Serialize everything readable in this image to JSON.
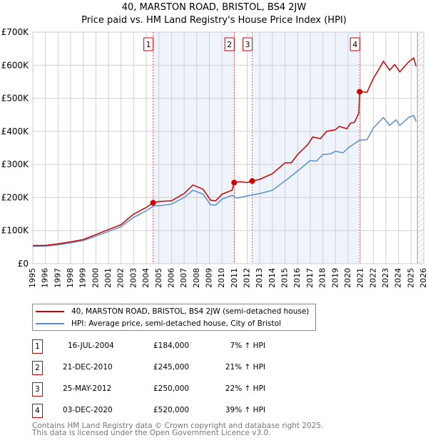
{
  "title": "40, MARSTON ROAD, BRISTOL, BS4 2JW",
  "subtitle": "Price paid vs. HM Land Registry's House Price Index (HPI)",
  "chart_data": {
    "type": "line",
    "ylim": [
      0,
      700000
    ],
    "xlim": [
      1995,
      2026
    ],
    "y_ticks": [
      {
        "v": 0,
        "label": "£0"
      },
      {
        "v": 100000,
        "label": "£100K"
      },
      {
        "v": 200000,
        "label": "£200K"
      },
      {
        "v": 300000,
        "label": "£300K"
      },
      {
        "v": 400000,
        "label": "£400K"
      },
      {
        "v": 500000,
        "label": "£500K"
      },
      {
        "v": 600000,
        "label": "£600K"
      },
      {
        "v": 700000,
        "label": "£700K"
      }
    ],
    "x_ticks": [
      "1995",
      "1996",
      "1997",
      "1998",
      "1999",
      "2000",
      "2001",
      "2002",
      "2003",
      "2004",
      "2005",
      "2006",
      "2007",
      "2008",
      "2009",
      "2010",
      "2011",
      "2012",
      "2013",
      "2014",
      "2015",
      "2016",
      "2017",
      "2018",
      "2019",
      "2020",
      "2021",
      "2022",
      "2023",
      "2024",
      "2025",
      "2026"
    ],
    "grid": true,
    "shaded_ranges": [
      [
        2004.54,
        2010.97
      ],
      [
        2012.4,
        2020.92
      ]
    ],
    "forecast_hatch_from": 2025.5,
    "series": [
      {
        "name": "40, MARSTON ROAD, BRISTOL, BS4 2JW (semi-detached house)",
        "color": "#cc0000",
        "points": [
          [
            1995,
            55000
          ],
          [
            1996,
            55000
          ],
          [
            1997,
            60000
          ],
          [
            1998,
            66000
          ],
          [
            1999,
            73000
          ],
          [
            2000,
            88000
          ],
          [
            2001,
            103000
          ],
          [
            2002,
            118000
          ],
          [
            2003,
            150000
          ],
          [
            2004,
            170000
          ],
          [
            2004.54,
            184000
          ],
          [
            2005,
            188000
          ],
          [
            2006,
            190000
          ],
          [
            2007,
            212000
          ],
          [
            2007.7,
            238000
          ],
          [
            2008.5,
            225000
          ],
          [
            2009.1,
            192000
          ],
          [
            2009.5,
            190000
          ],
          [
            2010,
            210000
          ],
          [
            2010.8,
            222000
          ],
          [
            2010.97,
            245000
          ],
          [
            2011.5,
            248000
          ],
          [
            2012,
            245000
          ],
          [
            2012.4,
            250000
          ],
          [
            2013,
            255000
          ],
          [
            2014,
            272000
          ],
          [
            2015,
            305000
          ],
          [
            2015.5,
            305000
          ],
          [
            2016,
            330000
          ],
          [
            2016.8,
            360000
          ],
          [
            2017.2,
            383000
          ],
          [
            2017.8,
            378000
          ],
          [
            2018.3,
            400000
          ],
          [
            2019,
            405000
          ],
          [
            2019.3,
            415000
          ],
          [
            2019.9,
            408000
          ],
          [
            2020.2,
            425000
          ],
          [
            2020.5,
            427000
          ],
          [
            2020.85,
            455000
          ],
          [
            2020.92,
            520000
          ],
          [
            2021.5,
            518000
          ],
          [
            2022,
            560000
          ],
          [
            2022.4,
            585000
          ],
          [
            2022.8,
            612000
          ],
          [
            2023.3,
            585000
          ],
          [
            2023.7,
            602000
          ],
          [
            2024.1,
            580000
          ],
          [
            2024.8,
            610000
          ],
          [
            2025.2,
            622000
          ],
          [
            2025.4,
            597000
          ]
        ]
      },
      {
        "name": "HPI: Average price, semi-detached house, City of Bristol",
        "color": "#5b8fd4",
        "points": [
          [
            1995,
            52000
          ],
          [
            1996,
            53000
          ],
          [
            1997,
            57000
          ],
          [
            1998,
            63000
          ],
          [
            1999,
            70000
          ],
          [
            2000,
            83000
          ],
          [
            2001,
            97000
          ],
          [
            2002,
            112000
          ],
          [
            2003,
            140000
          ],
          [
            2004,
            160000
          ],
          [
            2004.6,
            175000
          ],
          [
            2005,
            175000
          ],
          [
            2006,
            180000
          ],
          [
            2007,
            200000
          ],
          [
            2007.7,
            222000
          ],
          [
            2008.5,
            210000
          ],
          [
            2009.1,
            178000
          ],
          [
            2009.5,
            177000
          ],
          [
            2010,
            195000
          ],
          [
            2010.8,
            207000
          ],
          [
            2011.2,
            198000
          ],
          [
            2012,
            205000
          ],
          [
            2013,
            212000
          ],
          [
            2014,
            222000
          ],
          [
            2015,
            250000
          ],
          [
            2016,
            280000
          ],
          [
            2017,
            312000
          ],
          [
            2017.5,
            310000
          ],
          [
            2018,
            330000
          ],
          [
            2018.6,
            332000
          ],
          [
            2019,
            340000
          ],
          [
            2019.6,
            335000
          ],
          [
            2020,
            350000
          ],
          [
            2020.9,
            373000
          ],
          [
            2021.5,
            375000
          ],
          [
            2022,
            410000
          ],
          [
            2022.8,
            442000
          ],
          [
            2023.3,
            418000
          ],
          [
            2023.8,
            435000
          ],
          [
            2024.1,
            418000
          ],
          [
            2024.8,
            442000
          ],
          [
            2025.2,
            448000
          ],
          [
            2025.4,
            430000
          ]
        ]
      }
    ],
    "sales": [
      {
        "n": "1",
        "x": 2004.54,
        "y": 184000,
        "date": "16-JUL-2004",
        "price": "£184,000",
        "hpi": "7% ↑ HPI"
      },
      {
        "n": "2",
        "x": 2010.97,
        "y": 245000,
        "date": "21-DEC-2010",
        "price": "£245,000",
        "hpi": "21% ↑ HPI"
      },
      {
        "n": "3",
        "x": 2012.4,
        "y": 250000,
        "date": "25-MAY-2012",
        "price": "£250,000",
        "hpi": "22% ↑ HPI"
      },
      {
        "n": "4",
        "x": 2020.92,
        "y": 520000,
        "date": "03-DEC-2020",
        "price": "£520,000",
        "hpi": "39% ↑ HPI"
      }
    ]
  },
  "footer": {
    "line1": "Contains HM Land Registry data © Crown copyright and database right 2025.",
    "line2": "This data is licensed under the Open Government Licence v3.0."
  }
}
